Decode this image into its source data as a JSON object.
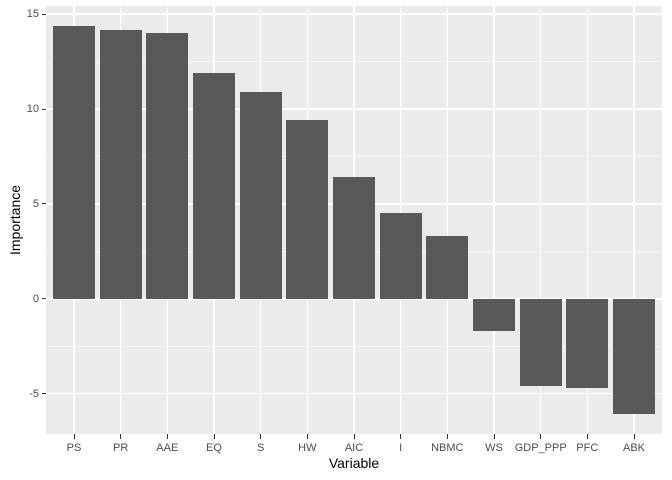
{
  "chart_data": {
    "type": "bar",
    "title": "",
    "xlabel": "Variable",
    "ylabel": "Importance",
    "categories": [
      "PS",
      "PR",
      "AAE",
      "EQ",
      "S",
      "HW",
      "AIC",
      "I",
      "NBMC",
      "WS",
      "GDP_PPP",
      "PFC",
      "ABK"
    ],
    "values": [
      14.35,
      14.15,
      14.0,
      11.9,
      10.9,
      9.4,
      6.4,
      4.5,
      3.3,
      -1.7,
      -4.6,
      -4.7,
      -6.1
    ],
    "series_name": "Importance",
    "ylim": [
      -7.13,
      15.43
    ],
    "yticks_major": [
      15,
      10,
      5,
      0,
      -5
    ],
    "yticks_minor": [
      12.5,
      7.5,
      2.5,
      -2.5
    ],
    "ytick_labels": [
      "15",
      "10",
      "5",
      "0",
      "-5"
    ],
    "grid": "on",
    "legend": "none",
    "bar_width_fraction": 0.9,
    "colors": {
      "bar_fill": "#595959",
      "panel_bg": "#EBEBEB",
      "grid_major": "#FFFFFF",
      "grid_minor": "#FFFFFF",
      "tick_label": "#4D4D4D",
      "axis_title": "#000000",
      "tick_mark": "#333333",
      "figure_bg": "#FFFFFF"
    }
  }
}
